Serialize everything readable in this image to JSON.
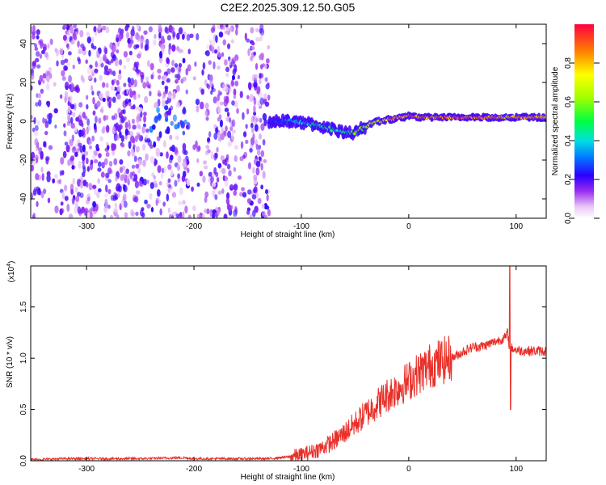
{
  "figure_title": "C2E2.2025.309.12.50.G05",
  "chart_data": [
    {
      "type": "heatmap",
      "title": "C2E2.2025.309.12.50.G05",
      "xlabel": "Height of straight line (km)",
      "ylabel": "Frequency (Hz)",
      "xlim": [
        -352,
        128
      ],
      "ylim": [
        -50,
        50
      ],
      "xticks": [
        -300,
        -200,
        -100,
        0,
        100
      ],
      "yticks": [
        -40,
        -20,
        0,
        20,
        40
      ],
      "colorbar": {
        "label": "Normalized spectral amplitude",
        "range": [
          0,
          1
        ],
        "ticks": [
          0.0,
          0.2,
          0.4,
          0.6,
          0.8
        ],
        "tick_labels": [
          "0.0",
          "0.2",
          "0.4",
          "0.6",
          "0.8"
        ]
      },
      "noise_region": {
        "x_range": [
          -352,
          -130
        ],
        "freq_range": [
          -50,
          50
        ],
        "typical_amplitude": 0.15
      },
      "signal_track": {
        "x": [
          -130,
          -110,
          -95,
          -80,
          -65,
          -55,
          -50,
          -45,
          -40,
          -35,
          -30,
          -25,
          -20,
          -15,
          -10,
          -5,
          0,
          10,
          20,
          40,
          60,
          80,
          90,
          100,
          128
        ],
        "freq": [
          0,
          0,
          -1,
          -3,
          -5,
          -6,
          -6,
          -4,
          -3,
          -1,
          0,
          0,
          1,
          1,
          2,
          2,
          3,
          2,
          2,
          2,
          2,
          2,
          2,
          2,
          2
        ],
        "amplitude": [
          0.25,
          0.35,
          0.45,
          0.5,
          0.5,
          0.55,
          0.6,
          0.6,
          0.65,
          0.7,
          0.75,
          0.8,
          0.85,
          0.9,
          0.9,
          0.85,
          0.95,
          0.95,
          0.95,
          0.95,
          0.95,
          0.95,
          0.8,
          0.95,
          0.9
        ]
      }
    },
    {
      "type": "line",
      "title": "",
      "xlabel": "Height of straight line (km)",
      "ylabel": "SNR (10 * v/v)",
      "y_multiplier_label": "(x10",
      "y_multiplier_exp": "4",
      "y_multiplier_close": ")",
      "xlim": [
        -352,
        128
      ],
      "ylim": [
        0,
        1.9
      ],
      "xticks": [
        -300,
        -200,
        -100,
        0,
        100
      ],
      "yticks": [
        0.0,
        0.5,
        1.0,
        1.5
      ],
      "ytick_labels": [
        "0.0",
        "0.5",
        "1.0",
        "1.5"
      ],
      "line_color": "#e8302a",
      "series": [
        {
          "name": "SNR",
          "x": [
            -352,
            -320,
            -300,
            -250,
            -210,
            -200,
            -160,
            -130,
            -110,
            -100,
            -90,
            -80,
            -70,
            -60,
            -50,
            -40,
            -30,
            -20,
            -10,
            0,
            10,
            20,
            30,
            40,
            50,
            60,
            70,
            80,
            90,
            92,
            94,
            96,
            100,
            110,
            128
          ],
          "values": [
            0.01,
            0.02,
            0.02,
            0.02,
            0.03,
            0.02,
            0.02,
            0.02,
            0.04,
            0.06,
            0.09,
            0.13,
            0.19,
            0.27,
            0.36,
            0.46,
            0.55,
            0.64,
            0.71,
            0.78,
            0.86,
            0.93,
            0.97,
            1.0,
            1.06,
            1.11,
            1.12,
            1.16,
            1.2,
            1.25,
            1.1,
            1.1,
            1.08,
            1.07,
            1.07
          ]
        }
      ],
      "features": {
        "spike_x": 94,
        "spike_max": 1.9,
        "spike_min": 0.5
      }
    }
  ]
}
